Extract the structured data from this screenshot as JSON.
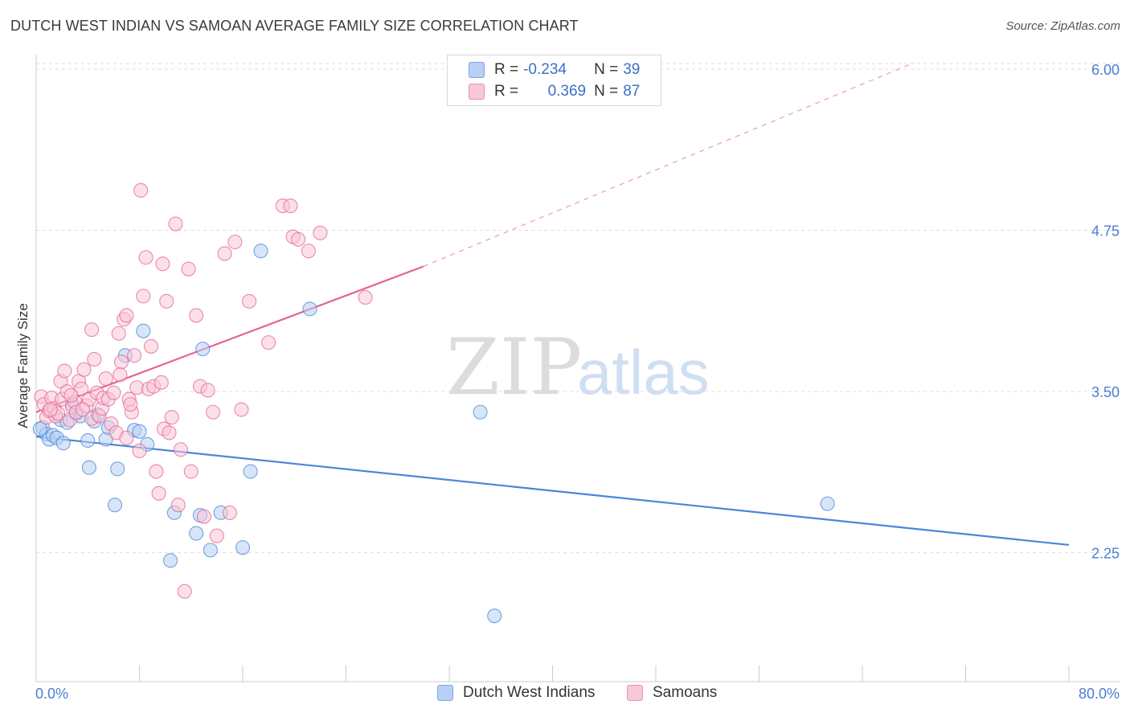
{
  "header": {
    "title": "DUTCH WEST INDIAN VS SAMOAN AVERAGE FAMILY SIZE CORRELATION CHART",
    "source": "Source: ZipAtlas.com"
  },
  "watermark": {
    "zip": "ZIP",
    "atlas": "atlas"
  },
  "legend": {
    "series1": {
      "r_label": "R =",
      "r_value": "-0.234",
      "n_label": "N =",
      "n_value": "39",
      "color": "#7aa7e6",
      "fill": "#b7d0f3"
    },
    "series2": {
      "r_label": "R =",
      "r_value": "0.369",
      "n_label": "N =",
      "n_value": "87",
      "color": "#ee8fb0",
      "fill": "#f8c7d8"
    }
  },
  "bottom_legend": {
    "item1": "Dutch West Indians",
    "item2": "Samoans"
  },
  "chart_data": {
    "type": "scatter",
    "title": "DUTCH WEST INDIAN VS SAMOAN AVERAGE FAMILY SIZE CORRELATION CHART",
    "xlabel": "",
    "ylabel": "Average Family Size",
    "x_tick_labels": [
      "0.0%",
      "80.0%"
    ],
    "y_tick_labels": [
      "2.25",
      "3.50",
      "4.75",
      "6.00"
    ],
    "y_ticks": [
      2.25,
      3.5,
      4.75,
      6.0
    ],
    "xlim": [
      0,
      80
    ],
    "ylim": [
      1.25,
      6.1
    ],
    "grid": true,
    "series": [
      {
        "name": "Dutch West Indians",
        "color": "#4a86d8",
        "fill": "#b7d0f3",
        "trend": {
          "x0": 0,
          "y0": 3.15,
          "x1": 80,
          "y1": 2.31,
          "dashed_to": null
        },
        "points": [
          [
            0.5,
            3.22
          ],
          [
            0.8,
            3.17
          ],
          [
            1.0,
            3.13
          ],
          [
            1.3,
            3.16
          ],
          [
            1.6,
            3.14
          ],
          [
            1.9,
            3.28
          ],
          [
            2.1,
            3.1
          ],
          [
            2.4,
            3.26
          ],
          [
            2.8,
            3.4
          ],
          [
            3.1,
            3.33
          ],
          [
            3.4,
            3.31
          ],
          [
            4.0,
            3.12
          ],
          [
            4.1,
            2.91
          ],
          [
            4.5,
            3.27
          ],
          [
            4.8,
            3.32
          ],
          [
            5.4,
            3.13
          ],
          [
            5.6,
            3.22
          ],
          [
            6.1,
            2.62
          ],
          [
            6.3,
            2.9
          ],
          [
            6.9,
            3.78
          ],
          [
            7.6,
            3.2
          ],
          [
            8.0,
            3.19
          ],
          [
            8.3,
            3.97
          ],
          [
            8.6,
            3.09
          ],
          [
            10.4,
            2.19
          ],
          [
            10.7,
            2.56
          ],
          [
            12.4,
            2.4
          ],
          [
            12.7,
            2.54
          ],
          [
            12.9,
            3.83
          ],
          [
            13.5,
            2.27
          ],
          [
            14.3,
            2.56
          ],
          [
            16.0,
            2.29
          ],
          [
            16.6,
            2.88
          ],
          [
            17.4,
            4.59
          ],
          [
            21.2,
            4.14
          ],
          [
            34.4,
            3.34
          ],
          [
            35.5,
            1.76
          ],
          [
            61.3,
            2.63
          ],
          [
            0.3,
            3.21
          ]
        ]
      },
      {
        "name": "Samoans",
        "color": "#e5648f",
        "fill": "#f8c7d8",
        "trend": {
          "x0": 0,
          "y0": 3.34,
          "x1": 30,
          "y1": 4.47,
          "dashed_to": [
            68,
            6.05
          ]
        },
        "points": [
          [
            0.4,
            3.46
          ],
          [
            0.6,
            3.4
          ],
          [
            0.8,
            3.3
          ],
          [
            1.0,
            3.35
          ],
          [
            1.2,
            3.45
          ],
          [
            1.4,
            3.37
          ],
          [
            1.5,
            3.31
          ],
          [
            1.7,
            3.33
          ],
          [
            1.9,
            3.58
          ],
          [
            2.0,
            3.44
          ],
          [
            2.2,
            3.66
          ],
          [
            2.4,
            3.5
          ],
          [
            2.6,
            3.28
          ],
          [
            2.8,
            3.38
          ],
          [
            3.0,
            3.42
          ],
          [
            3.1,
            3.34
          ],
          [
            3.3,
            3.58
          ],
          [
            3.5,
            3.52
          ],
          [
            3.7,
            3.67
          ],
          [
            3.9,
            3.39
          ],
          [
            4.1,
            3.44
          ],
          [
            4.3,
            3.29
          ],
          [
            4.5,
            3.75
          ],
          [
            4.7,
            3.49
          ],
          [
            4.9,
            3.31
          ],
          [
            5.1,
            3.37
          ],
          [
            5.2,
            3.45
          ],
          [
            5.4,
            3.6
          ],
          [
            5.6,
            3.44
          ],
          [
            5.8,
            3.25
          ],
          [
            6.0,
            3.49
          ],
          [
            6.2,
            3.18
          ],
          [
            6.4,
            3.95
          ],
          [
            6.6,
            3.73
          ],
          [
            6.8,
            4.06
          ],
          [
            7.0,
            3.14
          ],
          [
            7.2,
            3.44
          ],
          [
            7.4,
            3.34
          ],
          [
            7.6,
            3.78
          ],
          [
            7.8,
            3.53
          ],
          [
            8.0,
            3.04
          ],
          [
            8.3,
            4.24
          ],
          [
            8.5,
            4.54
          ],
          [
            8.7,
            3.52
          ],
          [
            8.9,
            3.85
          ],
          [
            9.1,
            3.54
          ],
          [
            9.3,
            2.88
          ],
          [
            9.5,
            2.71
          ],
          [
            9.7,
            3.57
          ],
          [
            9.9,
            3.21
          ],
          [
            10.1,
            4.2
          ],
          [
            10.3,
            3.18
          ],
          [
            10.5,
            3.3
          ],
          [
            10.8,
            4.8
          ],
          [
            11.0,
            2.62
          ],
          [
            11.2,
            3.05
          ],
          [
            11.5,
            1.95
          ],
          [
            11.8,
            4.45
          ],
          [
            12.0,
            2.88
          ],
          [
            12.4,
            4.09
          ],
          [
            12.7,
            3.54
          ],
          [
            13.0,
            2.53
          ],
          [
            13.3,
            3.51
          ],
          [
            13.7,
            3.34
          ],
          [
            14.0,
            2.38
          ],
          [
            14.6,
            4.57
          ],
          [
            15.0,
            2.56
          ],
          [
            15.4,
            4.66
          ],
          [
            15.9,
            3.36
          ],
          [
            16.5,
            4.2
          ],
          [
            18.0,
            3.88
          ],
          [
            19.1,
            4.94
          ],
          [
            19.7,
            4.94
          ],
          [
            19.9,
            4.7
          ],
          [
            20.3,
            4.68
          ],
          [
            21.1,
            4.59
          ],
          [
            22.0,
            4.73
          ],
          [
            25.5,
            4.23
          ],
          [
            7.0,
            4.09
          ],
          [
            7.3,
            3.4
          ],
          [
            4.3,
            3.98
          ],
          [
            3.6,
            3.36
          ],
          [
            2.7,
            3.47
          ],
          [
            1.1,
            3.36
          ],
          [
            6.5,
            3.63
          ],
          [
            8.1,
            5.06
          ],
          [
            9.8,
            4.49
          ]
        ]
      }
    ]
  }
}
